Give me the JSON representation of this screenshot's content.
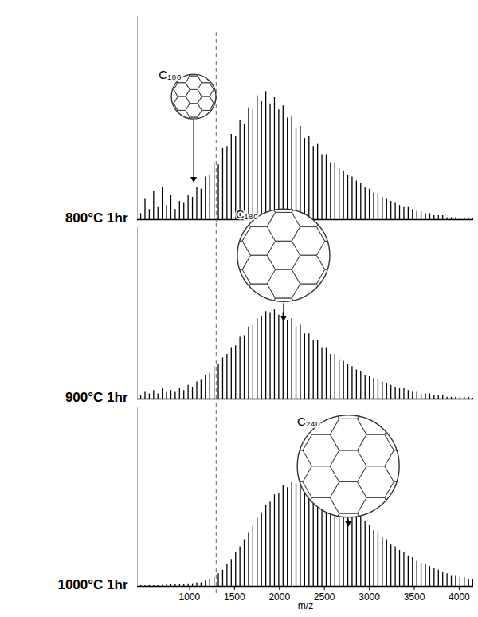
{
  "chart_data": [
    {
      "type": "stem",
      "title": "800°C 1hr",
      "color": "#000000",
      "x": [
        456,
        504,
        552,
        600,
        648,
        696,
        744,
        792,
        840,
        888,
        936,
        984,
        1032,
        1080,
        1128,
        1176,
        1224,
        1272,
        1320,
        1368,
        1416,
        1464,
        1512,
        1560,
        1608,
        1656,
        1704,
        1752,
        1800,
        1848,
        1896,
        1944,
        1992,
        2040,
        2088,
        2136,
        2184,
        2232,
        2280,
        2328,
        2376,
        2424,
        2472,
        2520,
        2568,
        2616,
        2664,
        2712,
        2760,
        2808,
        2856,
        2904,
        2952,
        3000,
        3048,
        3096,
        3144,
        3192,
        3240,
        3288,
        3336,
        3384,
        3432,
        3480,
        3528,
        3576,
        3624,
        3672,
        3720,
        3768,
        3816,
        3864,
        3912,
        3960,
        4008,
        4056,
        4104,
        4152
      ],
      "values": [
        3,
        10,
        5,
        14,
        6,
        16,
        7,
        12,
        5,
        9,
        8,
        12,
        11,
        16,
        15,
        21,
        22,
        28,
        27,
        35,
        36,
        42,
        41,
        49,
        47,
        55,
        54,
        61,
        58,
        63,
        57,
        60,
        54,
        56,
        50,
        51,
        45,
        46,
        40,
        41,
        36,
        37,
        32,
        32,
        28,
        28,
        25,
        24,
        22,
        21,
        19,
        18,
        16,
        15,
        13,
        13,
        11,
        10,
        9,
        8,
        7,
        6,
        6,
        5,
        4,
        4,
        3,
        3,
        2,
        2,
        2,
        1,
        1,
        1,
        1,
        1,
        0.5,
        0.5
      ],
      "xlim": [
        420,
        4160
      ],
      "xticks": [],
      "ylim": [
        0,
        100
      ],
      "yticks": [],
      "tick_labels": false,
      "reference_lines": [
        {
          "x": 1300,
          "line_style": "dashed"
        }
      ],
      "annotations": [
        {
          "text": "C₁₀₀",
          "x": 1050,
          "y": 18
        }
      ]
    },
    {
      "type": "stem",
      "title": "900°C 1hr",
      "color": "#000000",
      "x": [
        456,
        504,
        552,
        600,
        648,
        696,
        744,
        792,
        840,
        888,
        936,
        984,
        1032,
        1080,
        1128,
        1176,
        1224,
        1272,
        1320,
        1368,
        1416,
        1464,
        1512,
        1560,
        1608,
        1656,
        1704,
        1752,
        1800,
        1848,
        1896,
        1944,
        1992,
        2040,
        2088,
        2136,
        2184,
        2232,
        2280,
        2328,
        2376,
        2424,
        2472,
        2520,
        2568,
        2616,
        2664,
        2712,
        2760,
        2808,
        2856,
        2904,
        2952,
        3000,
        3048,
        3096,
        3144,
        3192,
        3240,
        3288,
        3336,
        3384,
        3432,
        3480,
        3528,
        3576,
        3624,
        3672,
        3720,
        3768,
        3816,
        3864,
        3912,
        3960,
        4008,
        4056,
        4104,
        4152
      ],
      "values": [
        2,
        4,
        3,
        5,
        3,
        6,
        4,
        5,
        4,
        6,
        5,
        8,
        7,
        10,
        11,
        14,
        15,
        19,
        20,
        24,
        26,
        30,
        31,
        36,
        37,
        42,
        43,
        47,
        48,
        51,
        50,
        52,
        49,
        50,
        46,
        47,
        42,
        43,
        38,
        38,
        34,
        34,
        30,
        30,
        26,
        26,
        23,
        22,
        20,
        19,
        17,
        16,
        14,
        13,
        12,
        11,
        10,
        9,
        8,
        7,
        6,
        6,
        5,
        4,
        4,
        3,
        3,
        3,
        2,
        2,
        2,
        1,
        1,
        1,
        1,
        1,
        1,
        0.5
      ],
      "xlim": [
        420,
        4160
      ],
      "xticks": [],
      "ylim": [
        0,
        100
      ],
      "yticks": [],
      "tick_labels": false,
      "reference_lines": [
        {
          "x": 1300,
          "line_style": "dashed"
        }
      ],
      "annotations": [
        {
          "text": "C₁₈₀",
          "x": 2050,
          "y": 45
        }
      ]
    },
    {
      "type": "stem",
      "title": "1000°C 1hr",
      "color": "#000000",
      "x_label": "m/z",
      "x": [
        456,
        504,
        552,
        600,
        648,
        696,
        744,
        792,
        840,
        888,
        936,
        984,
        1032,
        1080,
        1128,
        1176,
        1224,
        1272,
        1320,
        1368,
        1416,
        1464,
        1512,
        1560,
        1608,
        1656,
        1704,
        1752,
        1800,
        1848,
        1896,
        1944,
        1992,
        2040,
        2088,
        2136,
        2184,
        2232,
        2280,
        2328,
        2376,
        2424,
        2472,
        2520,
        2568,
        2616,
        2664,
        2712,
        2760,
        2808,
        2856,
        2904,
        2952,
        3000,
        3048,
        3096,
        3144,
        3192,
        3240,
        3288,
        3336,
        3384,
        3432,
        3480,
        3528,
        3576,
        3624,
        3672,
        3720,
        3768,
        3816,
        3864,
        3912,
        3960,
        4008,
        4056,
        4104,
        4152
      ],
      "values": [
        0.5,
        0.5,
        0.5,
        0.5,
        0.5,
        0.5,
        1,
        1,
        1,
        1,
        1,
        1.5,
        1.5,
        2,
        2,
        3,
        4,
        5,
        7,
        9,
        12,
        15,
        19,
        22,
        26,
        30,
        34,
        38,
        41,
        45,
        47,
        51,
        52,
        56,
        55,
        58,
        57,
        61,
        58,
        62,
        59,
        62,
        57,
        58,
        53,
        54,
        49,
        49,
        44,
        44,
        40,
        39,
        36,
        34,
        31,
        30,
        27,
        26,
        23,
        22,
        20,
        19,
        17,
        16,
        14,
        13,
        12,
        11,
        10,
        9,
        8,
        7,
        6,
        6,
        5,
        5,
        4,
        4
      ],
      "xlim": [
        420,
        4160
      ],
      "xticks": [
        1000,
        1500,
        2000,
        2500,
        3000,
        3500,
        4000
      ],
      "ylim": [
        0,
        100
      ],
      "yticks": [],
      "tick_labels": "x",
      "reference_lines": [
        {
          "x": 1300,
          "line_style": "dashed"
        }
      ],
      "annotations": [
        {
          "text": "C₂₄₀",
          "x": 2770,
          "y": 33
        }
      ]
    }
  ]
}
